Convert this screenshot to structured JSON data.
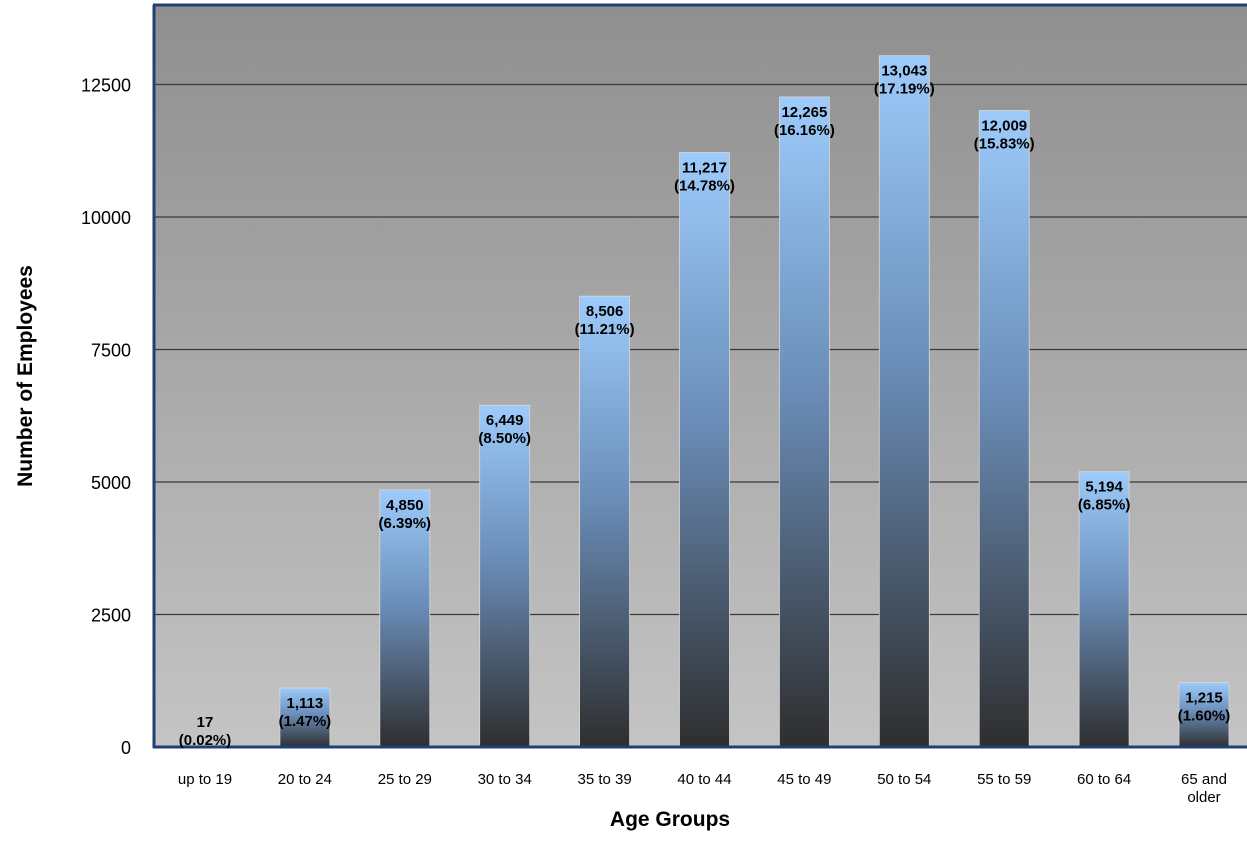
{
  "chart_data": {
    "type": "bar",
    "title": "",
    "xlabel": "Age Groups",
    "ylabel": "Number of Employees",
    "ylim": [
      0,
      13750
    ],
    "yticks": [
      0,
      2500,
      5000,
      7500,
      10000,
      12500
    ],
    "ytick_labels": [
      "0",
      "2500",
      "5000",
      "7500",
      "10000",
      "12500"
    ],
    "grid": true,
    "legend": "none",
    "categories": [
      "up to 19",
      "20 to 24",
      "25 to 29",
      "30 to 34",
      "35 to 39",
      "40 to 44",
      "45 to 49",
      "50 to 54",
      "55 to 59",
      "60 to 64",
      "65 and older"
    ],
    "values": [
      17,
      1113,
      4850,
      6449,
      8506,
      11217,
      12265,
      13043,
      12009,
      5194,
      1215
    ],
    "value_labels": [
      "17",
      "1,113",
      "4,850",
      "6,449",
      "8,506",
      "11,217",
      "12,265",
      "13,043",
      "12,009",
      "5,194",
      "1,215"
    ],
    "percent_labels": [
      "(0.02%)",
      "(1.47%)",
      "(6.39%)",
      "(8.50%)",
      "(11.21%)",
      "(14.78%)",
      "(16.16%)",
      "(17.19%)",
      "(15.83%)",
      "(6.85%)",
      "(1.60%)"
    ],
    "colors": {
      "plot_top": "#8f8f8f",
      "plot_bottom": "#c4c4c4",
      "bar_top": "#9dcbfb",
      "bar_mid": "#6a8db8",
      "bar_bottom": "#2e2e2e",
      "axis": "#1f3f7a",
      "grid": "#3a3a3a"
    }
  }
}
